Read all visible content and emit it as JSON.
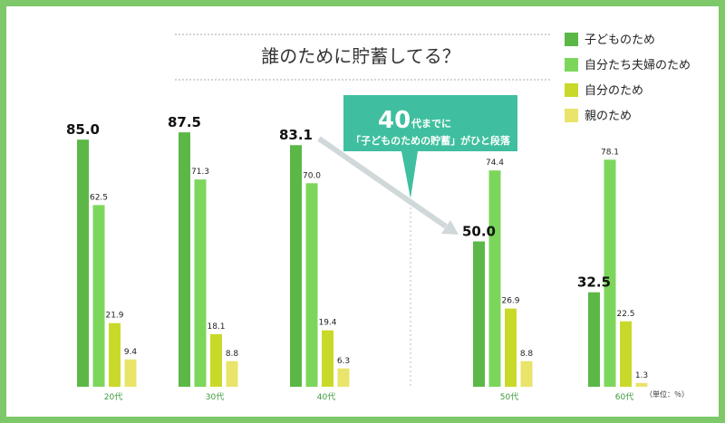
{
  "chart_data": {
    "type": "bar",
    "title": "誰のために貯蓄してる？",
    "categories": [
      "20代",
      "30代",
      "40代",
      "50代",
      "60代"
    ],
    "series": [
      {
        "name": "子どものため",
        "color": "#5cb846",
        "values": [
          85.0,
          87.5,
          83.1,
          50.0,
          32.5
        ]
      },
      {
        "name": "自分たち夫婦のため",
        "color": "#7dd65c",
        "values": [
          62.5,
          71.3,
          70.0,
          74.4,
          78.1
        ]
      },
      {
        "name": "自分のため",
        "color": "#c9d92a",
        "values": [
          21.9,
          18.1,
          19.4,
          26.9,
          22.5
        ]
      },
      {
        "name": "親のため",
        "color": "#e9e46a",
        "values": [
          9.4,
          8.8,
          6.3,
          8.8,
          1.3
        ]
      }
    ],
    "value_labels": [
      [
        "85.0",
        "62.5",
        "21.9",
        "9.4"
      ],
      [
        "87.5",
        "71.3",
        "18.1",
        "8.8"
      ],
      [
        "83.1",
        "70.0",
        "19.4",
        "6.3"
      ],
      [
        "50.0",
        "74.4",
        "26.9",
        "8.8"
      ],
      [
        "32.5",
        "78.1",
        "22.5",
        "1.3"
      ]
    ],
    "ylim": [
      0,
      100
    ],
    "unit_note": "（単位：％）",
    "legend_position": "top-right",
    "grid": false,
    "annotation": {
      "big": "40",
      "text": "代までに",
      "sub": "「子どものための貯蓄」がひと段落",
      "color": "#3fbf9f"
    }
  }
}
